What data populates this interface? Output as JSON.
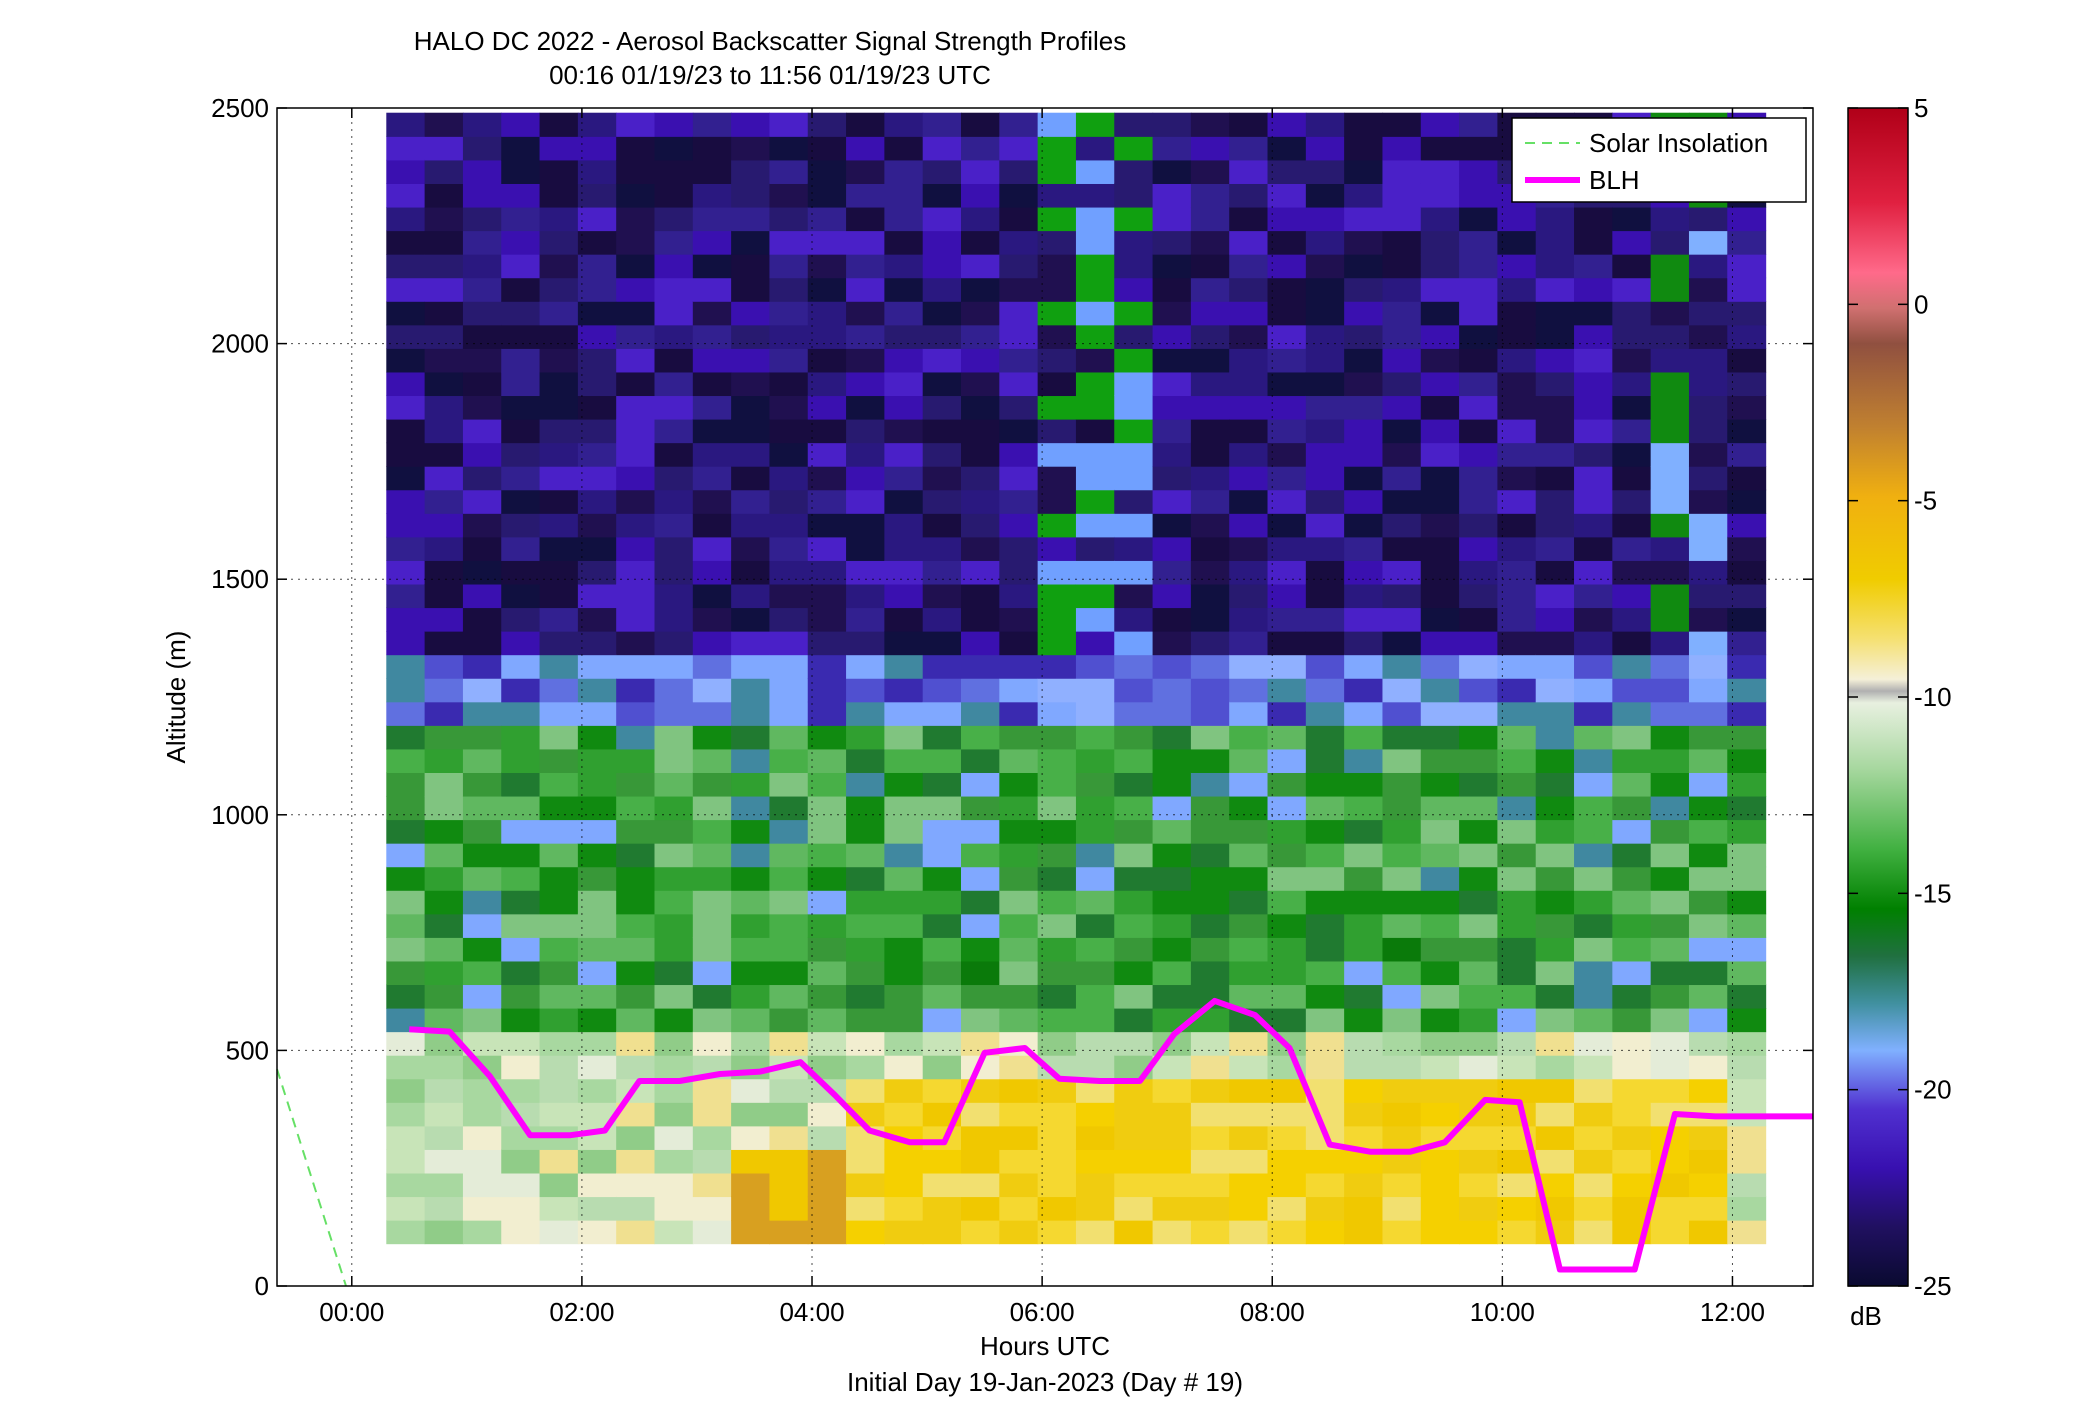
{
  "chart_data": {
    "type": "heatmap",
    "title": "HALO DC 2022 - Aerosol Backscatter Signal Strength Profiles",
    "subtitle": "00:16 01/19/23 to 11:56 01/19/23  UTC",
    "xlabel": "Hours UTC",
    "xlabel2": "Initial Day 19-Jan-2023 (Day # 19)",
    "ylabel": "Altitude (m)",
    "xlim": [
      -0.65,
      12.7
    ],
    "ylim": [
      0,
      2500
    ],
    "x_ticks": [
      0,
      2,
      4,
      6,
      8,
      10,
      12
    ],
    "x_tick_labels": [
      "00:00",
      "02:00",
      "04:00",
      "06:00",
      "08:00",
      "10:00",
      "12:00"
    ],
    "y_ticks": [
      0,
      500,
      1000,
      1500,
      2000,
      2500
    ],
    "y_tick_labels": [
      "0",
      "500",
      "1000",
      "1500",
      "2000",
      "2500"
    ],
    "grid": true,
    "colorbar": {
      "label": "dB",
      "range": [
        -25,
        5
      ],
      "ticks": [
        5,
        0,
        -5,
        -10,
        -15,
        -20,
        -25
      ],
      "tick_labels": [
        "5",
        "0",
        "-5",
        "-10",
        "-15",
        "-20",
        "-25"
      ]
    },
    "legend": {
      "placement": "top-right",
      "entries": [
        {
          "label": "Solar Insolation",
          "color": "#66e066",
          "style": "dashed"
        },
        {
          "label": "BLH",
          "color": "#ff00ff",
          "style": "solid"
        }
      ]
    },
    "heatmap": {
      "x_start": 0.3,
      "x_step": 0.333,
      "y_start": 90,
      "y_step": 50,
      "columns": 36,
      "rows": 48
    },
    "series": [
      {
        "name": "Solar Insolation",
        "color": "#66e066",
        "x": [
          -0.65,
          -0.05
        ],
        "y": [
          460,
          0
        ]
      },
      {
        "name": "BLH",
        "color": "#ff00ff",
        "x": [
          0.5,
          0.85,
          1.2,
          1.55,
          1.9,
          2.2,
          2.5,
          2.85,
          3.2,
          3.55,
          3.9,
          4.2,
          4.5,
          4.85,
          5.15,
          5.5,
          5.85,
          6.15,
          6.5,
          6.85,
          7.15,
          7.5,
          7.85,
          8.15,
          8.5,
          8.85,
          9.2,
          9.5,
          9.85,
          10.15,
          10.5,
          10.85,
          11.15,
          11.5,
          11.85,
          12.2,
          12.7
        ],
        "y": [
          545,
          540,
          445,
          320,
          320,
          330,
          435,
          435,
          450,
          455,
          475,
          405,
          330,
          305,
          305,
          495,
          505,
          440,
          435,
          435,
          535,
          605,
          575,
          505,
          300,
          285,
          285,
          305,
          395,
          390,
          35,
          35,
          35,
          365,
          360,
          360,
          360
        ]
      }
    ]
  }
}
